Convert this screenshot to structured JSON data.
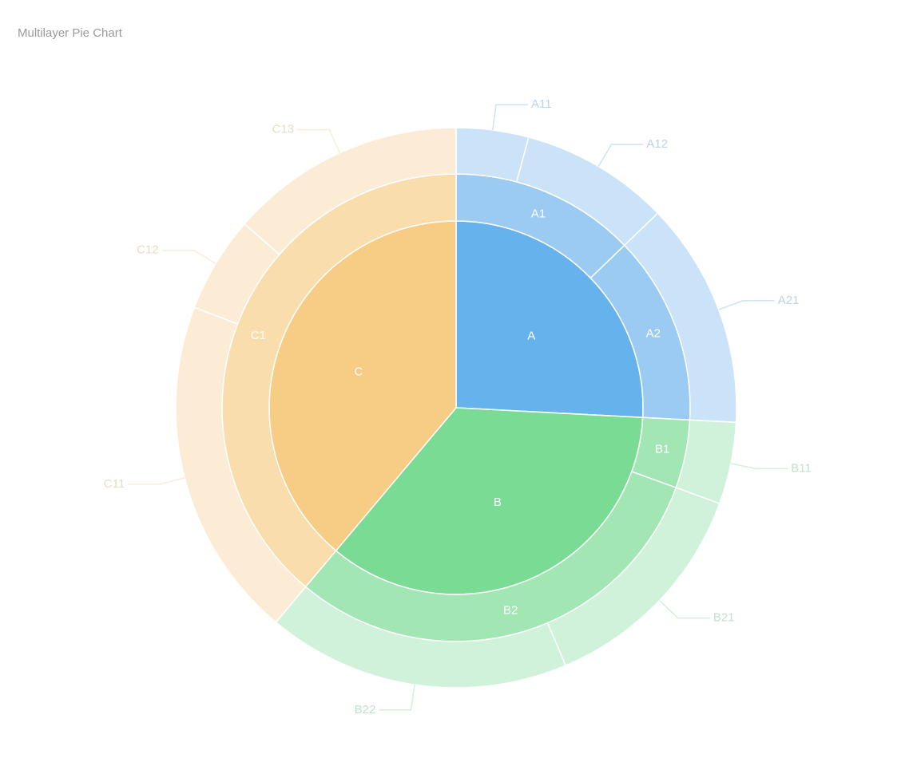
{
  "chart_data": {
    "type": "sunburst",
    "title": "Multilayer Pie Chart",
    "nodes": [
      {
        "name": "A",
        "color": "#66b2ec",
        "children": [
          {
            "name": "A1",
            "color": "#9bcbf3",
            "children": [
              {
                "name": "A11",
                "color": "#cbe3f8",
                "value": 15
              },
              {
                "name": "A12",
                "color": "#cbe3f8",
                "value": 31
              }
            ]
          },
          {
            "name": "A2",
            "color": "#9bcbf3",
            "children": [
              {
                "name": "A21",
                "color": "#cbe3f8",
                "value": 47
              }
            ]
          }
        ]
      },
      {
        "name": "B",
        "color": "#79db94",
        "children": [
          {
            "name": "B1",
            "color": "#a2e6b4",
            "children": [
              {
                "name": "B11",
                "color": "#d0f2da",
                "value": 17
              }
            ]
          },
          {
            "name": "B2",
            "color": "#a2e6b4",
            "children": [
              {
                "name": "B21",
                "color": "#d0f2da",
                "value": 47
              },
              {
                "name": "B22",
                "color": "#d0f2da",
                "value": 63
              }
            ]
          }
        ]
      },
      {
        "name": "C",
        "color": "#f7cc84",
        "children": [
          {
            "name": "C1",
            "color": "#f9ddac",
            "children": [
              {
                "name": "C11",
                "color": "#fcecd6",
                "value": 71
              },
              {
                "name": "C12",
                "color": "#fcecd6",
                "value": 20
              },
              {
                "name": "C13",
                "color": "#fcecd6",
                "value": 49
              }
            ]
          }
        ]
      }
    ]
  }
}
